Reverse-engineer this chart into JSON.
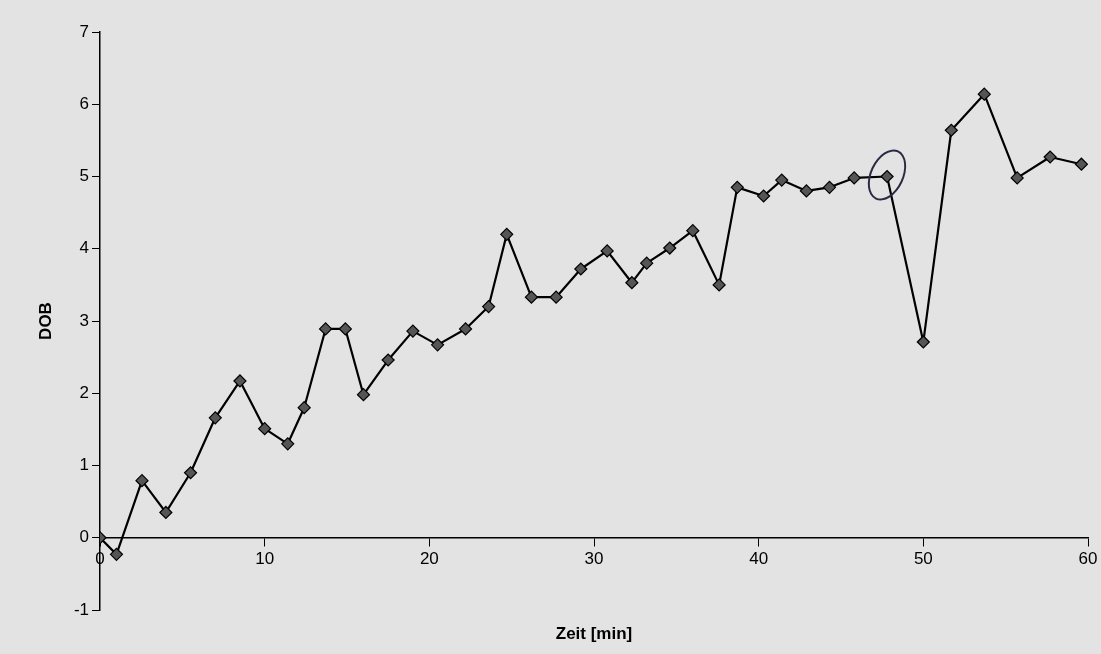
{
  "chart_data": {
    "type": "line",
    "xlabel": "Zeit [min]",
    "ylabel": "DOB",
    "x": [
      0,
      1.0,
      2.55,
      4.0,
      5.5,
      7.0,
      8.5,
      10.0,
      11.4,
      12.4,
      13.7,
      14.9,
      16.0,
      17.5,
      19.0,
      20.5,
      22.2,
      23.6,
      24.7,
      26.2,
      27.7,
      29.2,
      30.8,
      32.3,
      33.2,
      34.6,
      36.0,
      37.6,
      38.7,
      40.3,
      41.4,
      42.9,
      44.3,
      45.8,
      47.8,
      50.0,
      51.7,
      53.7,
      55.7,
      57.7,
      59.6
    ],
    "series": [
      {
        "color": "#000000",
        "values": [
          0,
          -0.23,
          0.79,
          0.35,
          0.9,
          1.66,
          2.17,
          1.51,
          1.3,
          1.8,
          2.89,
          2.89,
          1.98,
          2.46,
          2.86,
          2.67,
          2.89,
          3.2,
          4.2,
          3.33,
          3.33,
          3.72,
          3.97,
          3.53,
          3.8,
          4.01,
          4.25,
          3.5,
          4.85,
          4.73,
          4.95,
          4.8,
          4.85,
          4.98,
          5.0,
          2.71,
          5.64,
          6.14,
          4.98,
          5.27,
          5.17
        ]
      }
    ],
    "xlim": [
      0,
      60
    ],
    "xticks": [
      0,
      10,
      20,
      30,
      40,
      50,
      60
    ],
    "ylim": [
      -1,
      7
    ],
    "yticks": [
      -1,
      0,
      1,
      2,
      3,
      4,
      5,
      6,
      7
    ],
    "grid": false,
    "legend": false,
    "marker": "diamond",
    "line_style": "solid"
  }
}
